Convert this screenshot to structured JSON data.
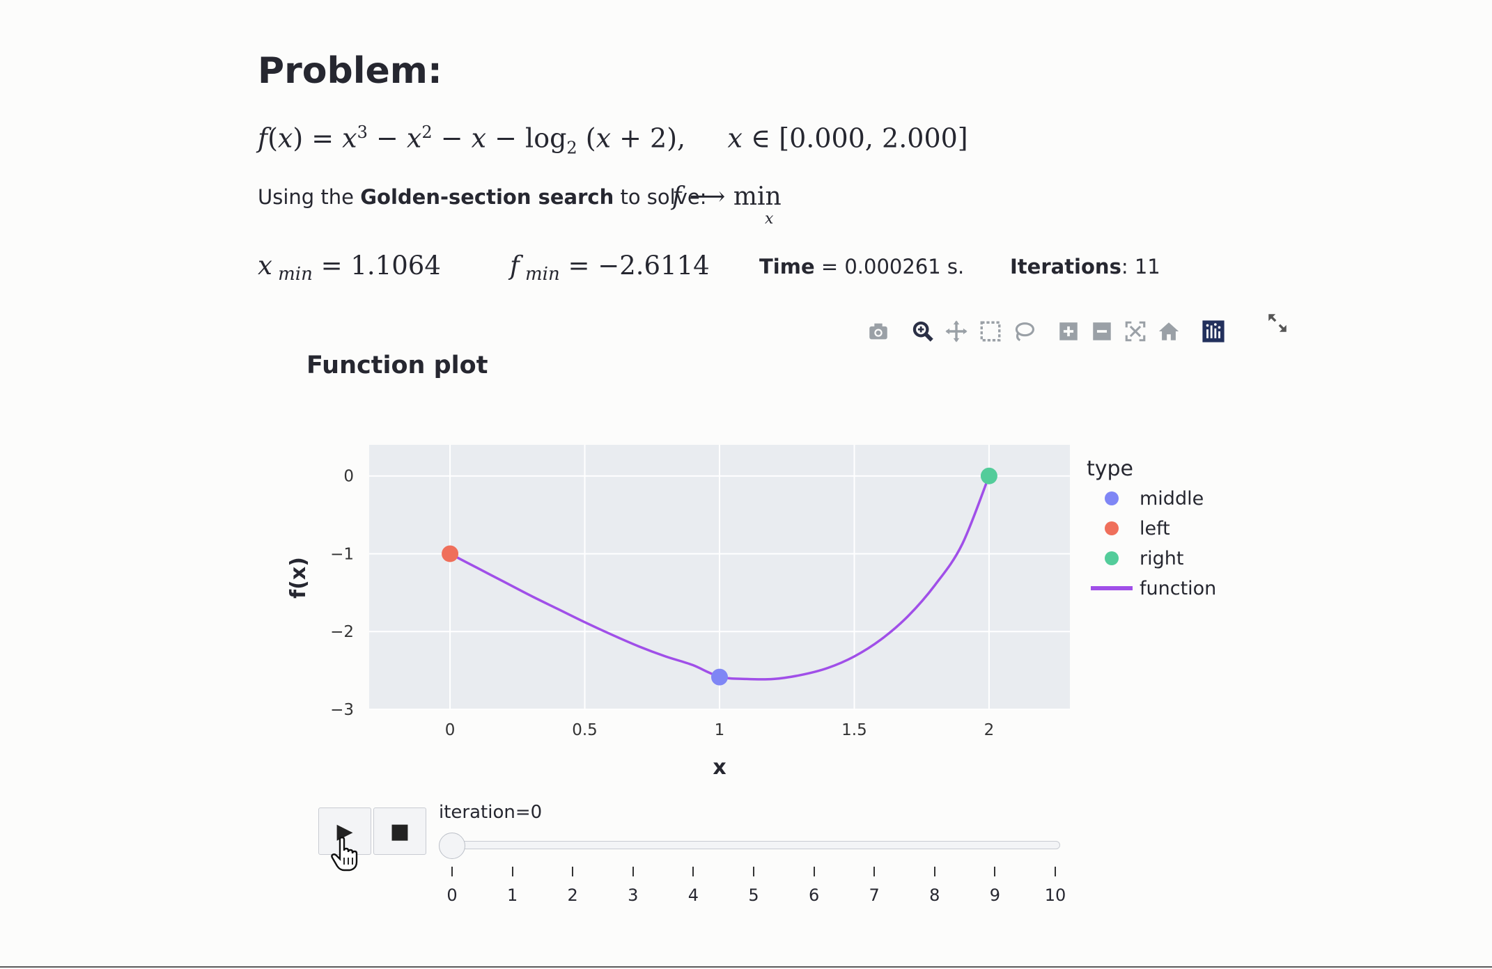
{
  "problem": {
    "title": "Problem:",
    "interval_text": "[0.000, 2.000]",
    "method_prefix": "Using the ",
    "method_name": "Golden-section search",
    "method_suffix": " to solve:",
    "objective_func": "f",
    "objective_op": "min",
    "objective_var": "x"
  },
  "results": {
    "x_min_value": "1.1064",
    "f_min_value": "−2.6114",
    "time_label": "Time",
    "time_value": " = 0.000261 s.",
    "iterations_label": "Iterations",
    "iterations_value": ": 11"
  },
  "toolbar": {
    "icons": [
      "camera-icon",
      "zoom-icon",
      "pan-icon",
      "box-select-icon",
      "lasso-icon",
      "zoom-in-icon",
      "zoom-out-icon",
      "autoscale-icon",
      "reset-axes-icon",
      "plotly-logo-icon",
      "fullscreen-icon"
    ]
  },
  "plot": {
    "title": "Function plot"
  },
  "colors": {
    "middle": "#7f86f5",
    "left": "#ef6f5b",
    "right": "#53cc9a",
    "function": "#a04fe8",
    "plot_bg": "#e9ecf0",
    "text": "#262730"
  },
  "chart_data": {
    "type": "line",
    "title": "Function plot",
    "xlabel": "x",
    "ylabel": "f(x)",
    "xlim": [
      -0.3,
      2.3
    ],
    "ylim": [
      -3,
      0.4
    ],
    "x_ticks": [
      0,
      0.5,
      1,
      1.5,
      2
    ],
    "x_tick_labels": [
      "0",
      "0.5",
      "1",
      "1.5",
      "2"
    ],
    "y_ticks": [
      0,
      -1,
      -2,
      -3
    ],
    "y_tick_labels": [
      "0",
      "−1",
      "−2",
      "−3"
    ],
    "legend_title": "type",
    "legend_position": "right",
    "series": [
      {
        "name": "middle",
        "mode": "markers",
        "x": [
          1
        ],
        "y": [
          -2.585
        ]
      },
      {
        "name": "left",
        "mode": "markers",
        "x": [
          0
        ],
        "y": [
          -1
        ]
      },
      {
        "name": "right",
        "mode": "markers",
        "x": [
          2
        ],
        "y": [
          0
        ]
      },
      {
        "name": "function",
        "mode": "lines",
        "x": [
          0,
          0.1,
          0.2,
          0.3,
          0.4,
          0.5,
          0.6,
          0.7,
          0.8,
          0.9,
          1.0,
          1.1,
          1.2,
          1.3,
          1.4,
          1.5,
          1.6,
          1.7,
          1.8,
          1.9,
          2.0
        ],
        "y": [
          -1.0,
          -1.18,
          -1.36,
          -1.54,
          -1.71,
          -1.88,
          -2.04,
          -2.19,
          -2.32,
          -2.43,
          -2.58,
          -2.61,
          -2.61,
          -2.56,
          -2.47,
          -2.32,
          -2.1,
          -1.8,
          -1.4,
          -0.88,
          0.0
        ]
      }
    ]
  },
  "animation": {
    "play_label": "▶",
    "stop_label": "■",
    "slider_label": "iteration=0",
    "current": 0,
    "max": 10,
    "ticks": [
      "0",
      "1",
      "2",
      "3",
      "4",
      "5",
      "6",
      "7",
      "8",
      "9",
      "10"
    ]
  }
}
